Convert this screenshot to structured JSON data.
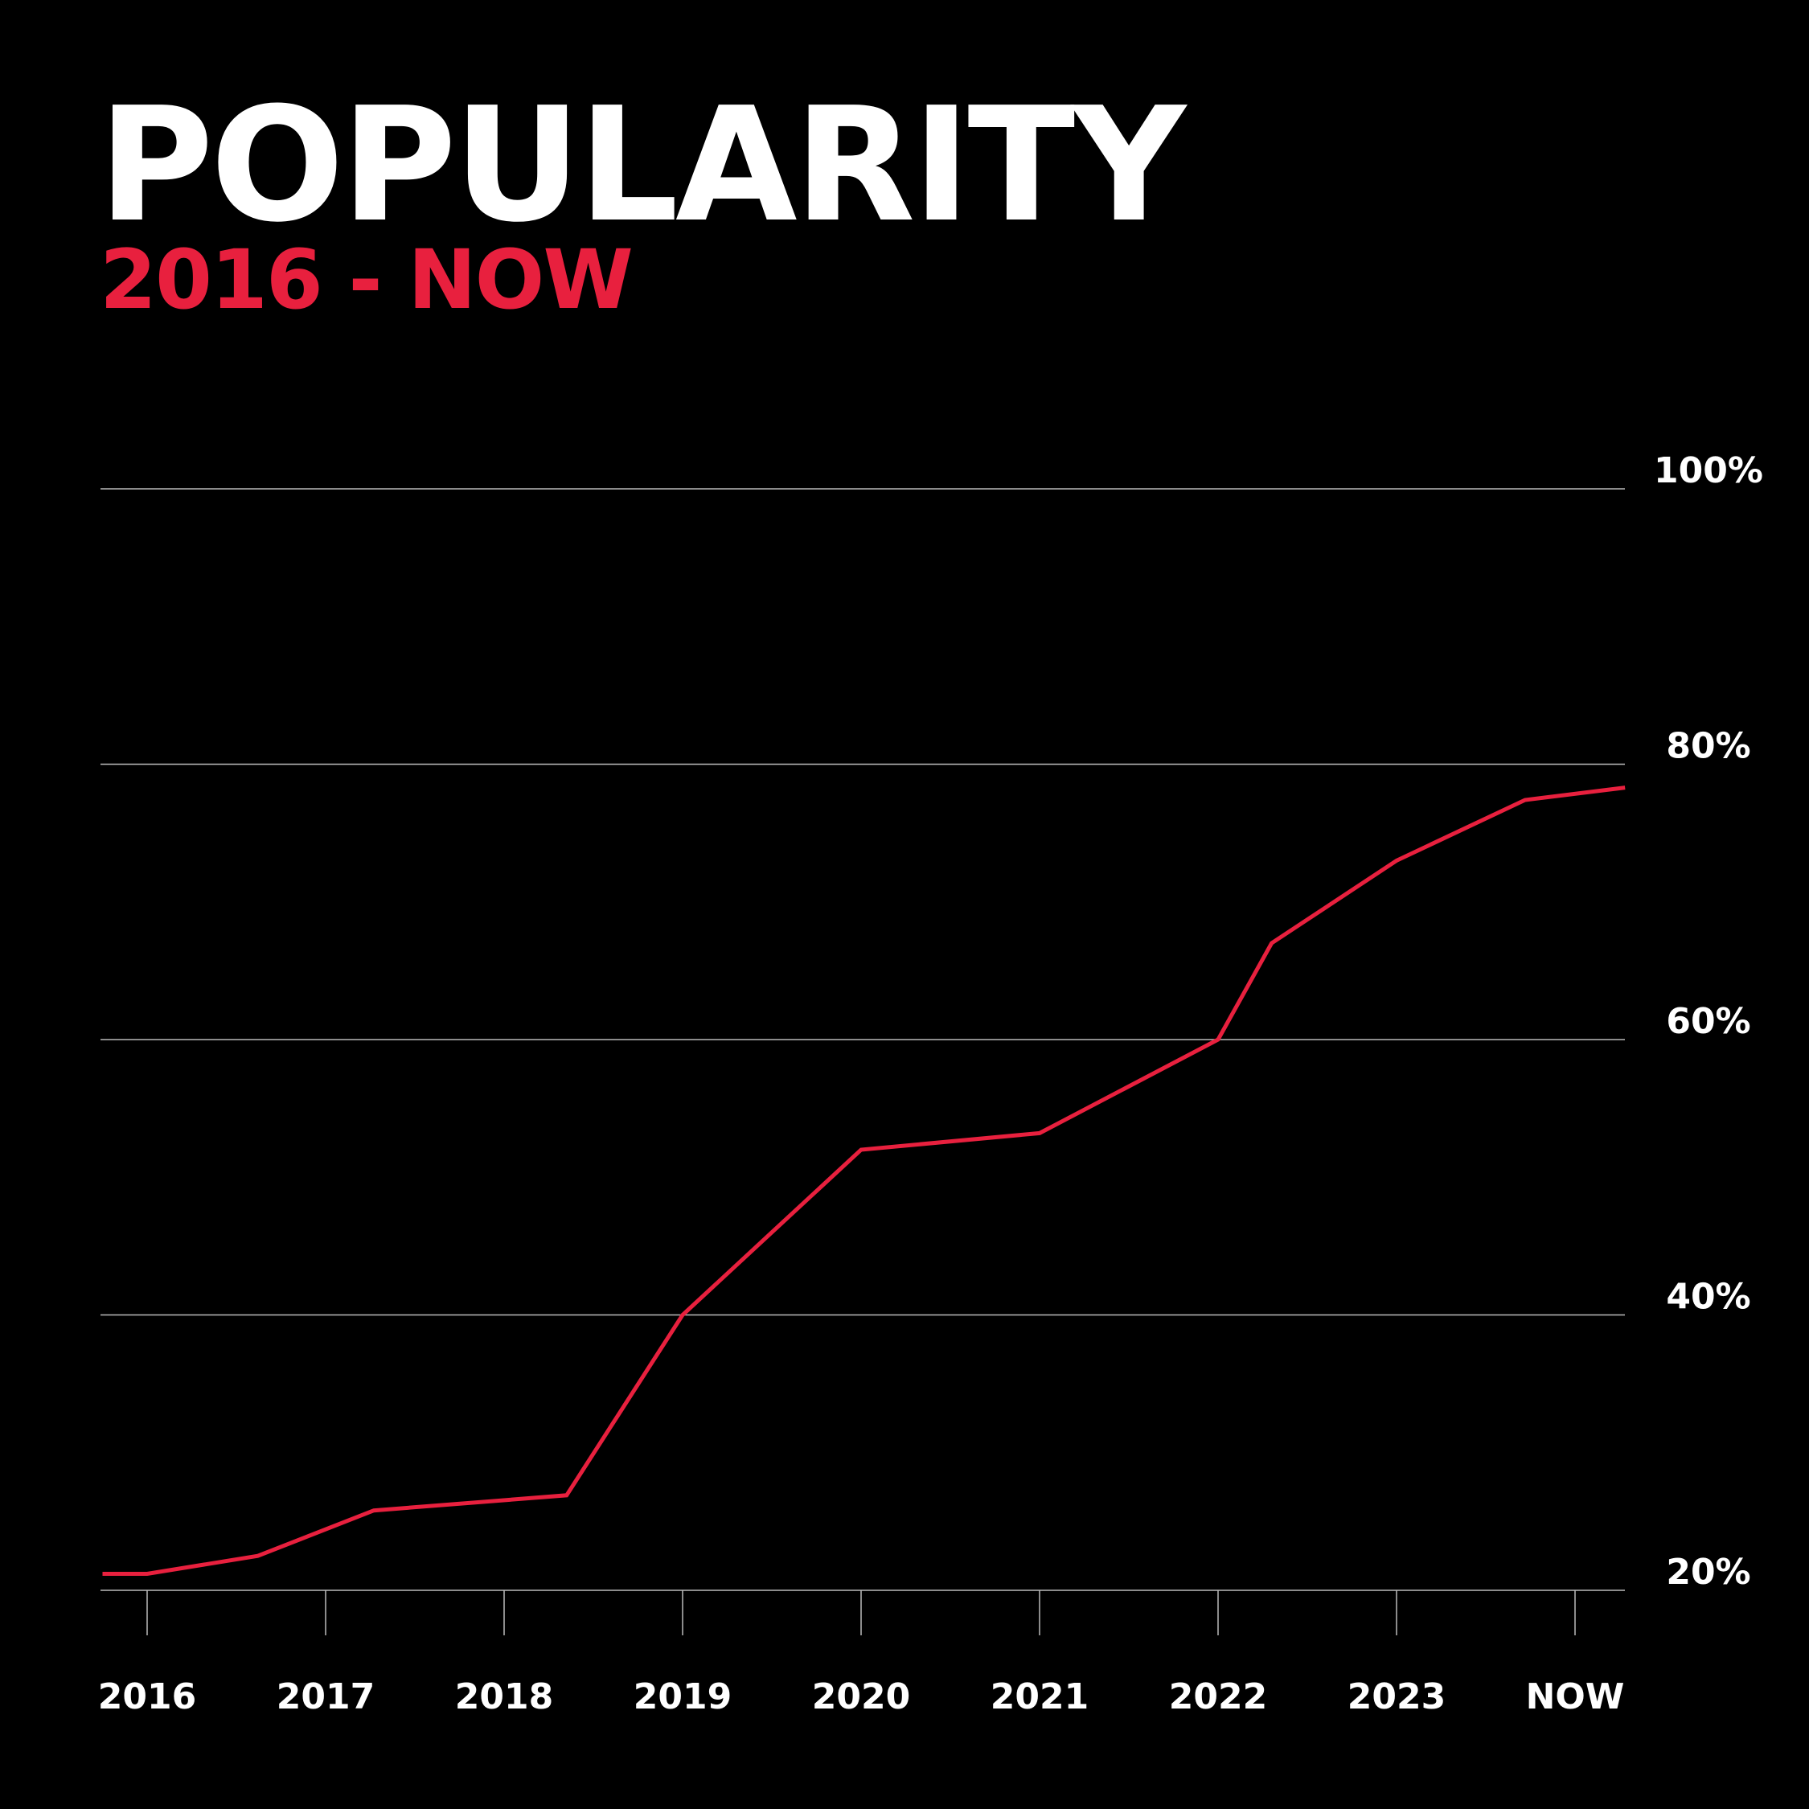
{
  "header": {
    "title": "POPULARITY",
    "subtitle": "2016 - NOW"
  },
  "colors": {
    "background": "#000000",
    "text": "#ffffff",
    "accent": "#e8203e",
    "grid": "#bbbbbb"
  },
  "chart_data": {
    "type": "line",
    "title": "POPULARITY",
    "subtitle": "2016 - NOW",
    "xlabel": "",
    "ylabel": "",
    "x_ticks": [
      "2016",
      "2017",
      "2018",
      "2019",
      "2020",
      "2021",
      "2022",
      "2023",
      "NOW"
    ],
    "y_ticks": [
      "20%",
      "40%",
      "60%",
      "80%",
      "100%"
    ],
    "y_tick_values": [
      20,
      40,
      60,
      80,
      100
    ],
    "ylim": [
      20,
      100
    ],
    "xlim": [
      2015.75,
      2024.28
    ],
    "y_axis_position": "right",
    "grid": true,
    "legend": "none",
    "series": [
      {
        "color": "#e8203e",
        "points": [
          {
            "x": 2015.75,
            "y": 21.2
          },
          {
            "x": 2016.0,
            "y": 21.2
          },
          {
            "x": 2016.62,
            "y": 22.5
          },
          {
            "x": 2017.27,
            "y": 25.8
          },
          {
            "x": 2018.35,
            "y": 26.9
          },
          {
            "x": 2019.0,
            "y": 40.0
          },
          {
            "x": 2020.0,
            "y": 52.0
          },
          {
            "x": 2021.0,
            "y": 53.2
          },
          {
            "x": 2022.0,
            "y": 60.0
          },
          {
            "x": 2022.3,
            "y": 67.0
          },
          {
            "x": 2023.0,
            "y": 73.0
          },
          {
            "x": 2023.72,
            "y": 77.4
          },
          {
            "x": 2024.28,
            "y": 78.3
          }
        ]
      }
    ]
  }
}
